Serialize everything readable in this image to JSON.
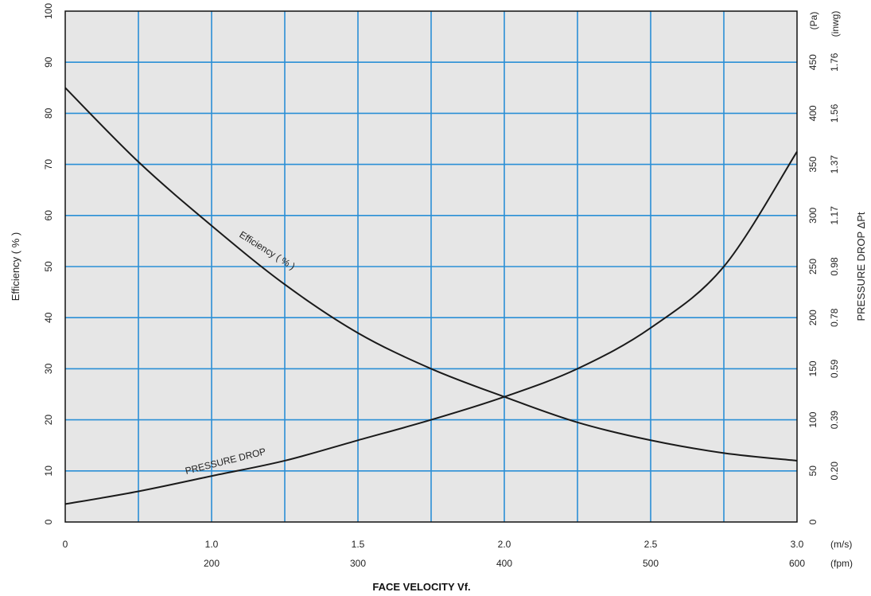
{
  "chart_data": {
    "type": "line",
    "grid": true,
    "background": "#e6e6e6",
    "grid_color": "#2a8fd6",
    "line_color": "#1a1a1a",
    "x_axis": {
      "title": "FACE VELOCITY  Vf.",
      "range": [
        0.5,
        3.0
      ],
      "tick_values": [
        0.5,
        1.0,
        1.5,
        2.0,
        2.5,
        3.0
      ],
      "ms_labels": [
        "0",
        "1.0",
        "1.5",
        "2.0",
        "2.5",
        "3.0"
      ],
      "fpm_labels": [
        "",
        "200",
        "300",
        "400",
        "500",
        "600"
      ],
      "ms_unit": "(m/s)",
      "fpm_unit": "(fpm)",
      "minor_grid": [
        0.75,
        1.25,
        1.75,
        2.25,
        2.75
      ]
    },
    "y_left": {
      "title": "Efficiency ( % )",
      "range": [
        0,
        100
      ],
      "ticks": [
        0,
        10,
        20,
        30,
        40,
        50,
        60,
        70,
        80,
        90,
        100
      ],
      "tick_labels": [
        "0",
        "10",
        "20",
        "30",
        "40",
        "50",
        "60",
        "70",
        "80",
        "90",
        "100"
      ]
    },
    "y_right": {
      "title": "PRESSURE DROP  ΔPt",
      "pa_unit": "(Pa)",
      "inwg_unit": "(inwg)",
      "pa_labels": [
        "0",
        "50",
        "100",
        "150",
        "200",
        "250",
        "300",
        "350",
        "400",
        "450"
      ],
      "inwg_labels": [
        "",
        "0.20",
        "0.39",
        "0.59",
        "0.78",
        "0.98",
        "1.17",
        "1.37",
        "1.56",
        "1.76"
      ]
    },
    "series": [
      {
        "name": "Efficiency ( % )",
        "axis": "left",
        "x": [
          0.5,
          0.75,
          1.0,
          1.25,
          1.5,
          1.75,
          2.0,
          2.25,
          2.5,
          2.75,
          3.0
        ],
        "y": [
          85,
          70.5,
          58,
          46.5,
          37,
          30,
          24.5,
          19.5,
          16,
          13.5,
          12
        ]
      },
      {
        "name": "PRESSURE DROP",
        "axis": "left",
        "x": [
          0.5,
          0.75,
          1.0,
          1.25,
          1.5,
          1.75,
          2.0,
          2.25,
          2.5,
          2.75,
          3.0
        ],
        "y": [
          3.5,
          6,
          9,
          12,
          16,
          20,
          24.5,
          30,
          38,
          50,
          72.5
        ]
      }
    ],
    "annotations": [
      "Efficiency ( % )",
      "PRESSURE DROP"
    ]
  }
}
